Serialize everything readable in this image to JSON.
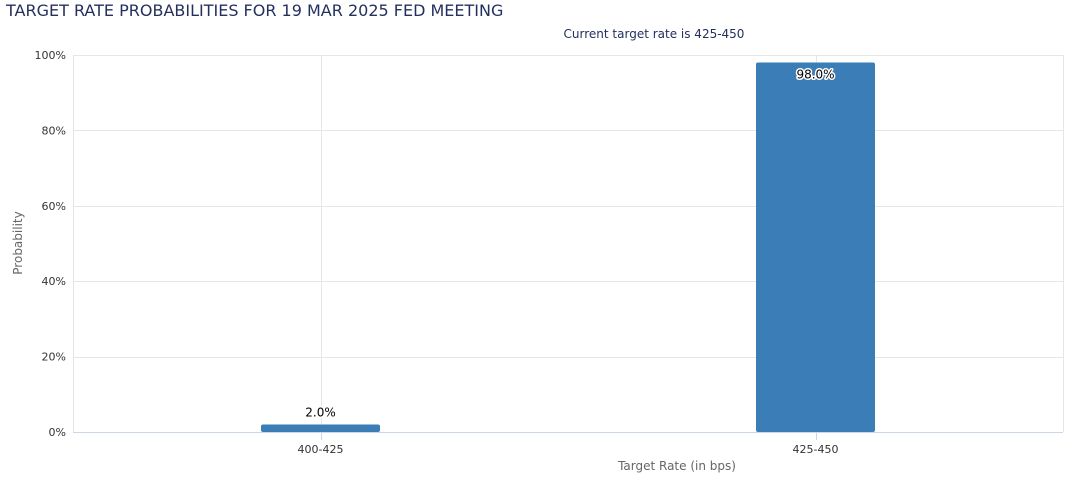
{
  "chart_data": {
    "type": "bar",
    "title": "TARGET RATE PROBABILITIES FOR 19 MAR 2025 FED MEETING",
    "subtitle": "Current target rate is 425-450",
    "xlabel": "Target Rate (in bps)",
    "ylabel": "Probability",
    "categories": [
      "400-425",
      "425-450"
    ],
    "values": [
      2.0,
      98.0
    ],
    "data_labels": [
      "2.0%",
      "98.0%"
    ],
    "ylim": [
      0,
      100
    ],
    "yticks": [
      0,
      20,
      40,
      60,
      80,
      100
    ],
    "ytick_labels": [
      "0%",
      "20%",
      "40%",
      "60%",
      "80%",
      "100%"
    ],
    "grid": true,
    "legend": "none",
    "bar_color": "#3b7db7",
    "grid_color": "#e6e6e6",
    "axis_color": "#ccd6eb",
    "title_color": "#24305e"
  }
}
